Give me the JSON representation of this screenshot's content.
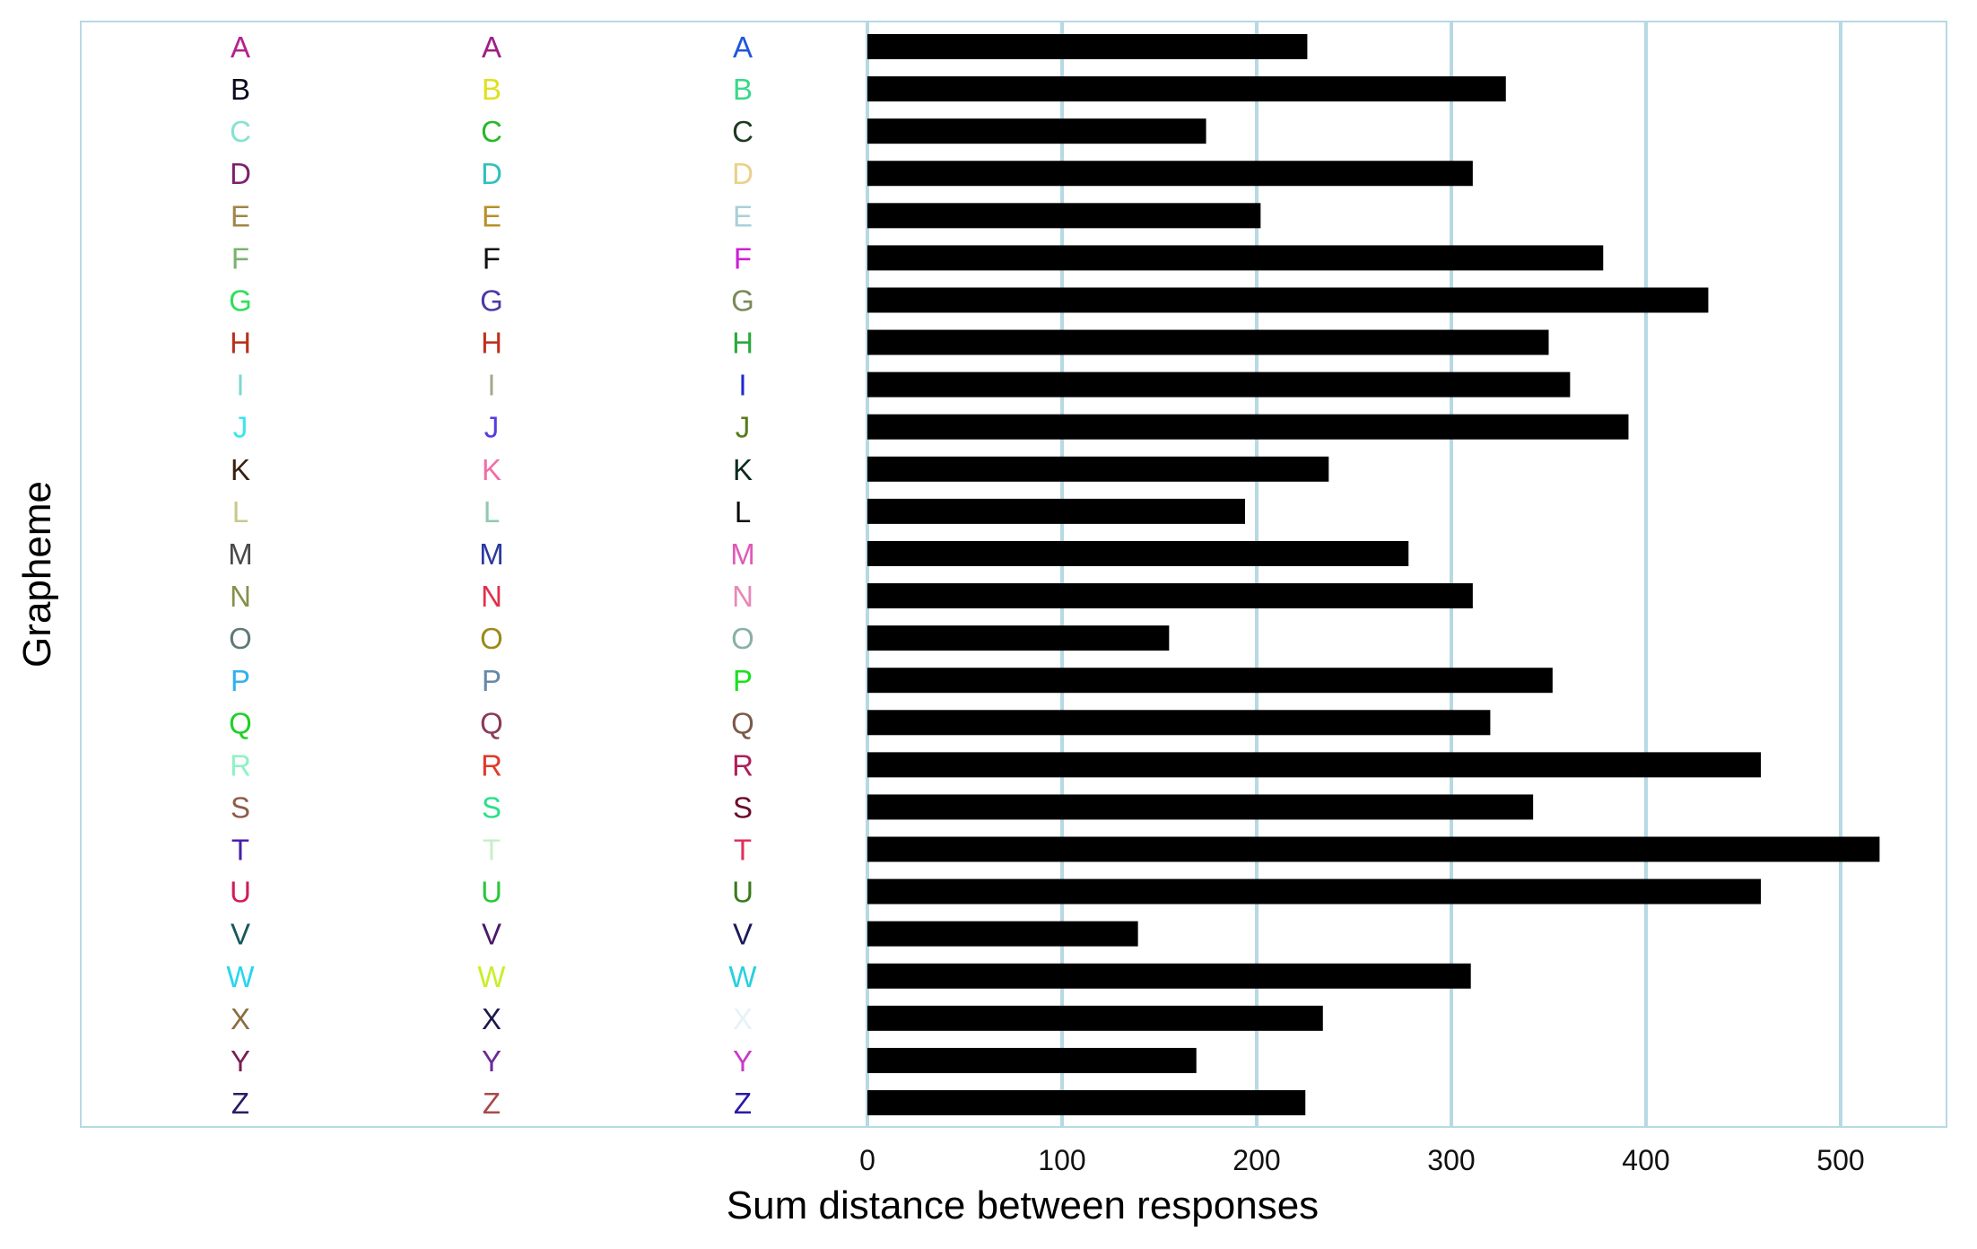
{
  "chart_data": {
    "type": "bar",
    "orientation": "horizontal",
    "xlabel": "Sum distance between responses",
    "ylabel": "Grapheme",
    "xlim": [
      0,
      560
    ],
    "x_ticks": [
      0,
      100,
      200,
      300,
      400,
      500
    ],
    "grid": "vertical major gridlines",
    "categories": [
      "A",
      "B",
      "C",
      "D",
      "E",
      "F",
      "G",
      "H",
      "I",
      "J",
      "K",
      "L",
      "M",
      "N",
      "O",
      "P",
      "Q",
      "R",
      "S",
      "T",
      "U",
      "V",
      "W",
      "X",
      "Y",
      "Z"
    ],
    "values": [
      226,
      328,
      174,
      311,
      202,
      378,
      432,
      350,
      361,
      391,
      237,
      194,
      278,
      311,
      155,
      352,
      320,
      459,
      342,
      520,
      459,
      139,
      310,
      234,
      169,
      225
    ],
    "bar_color": "#000000",
    "grid_color": "#b7d9e3",
    "panel_border_color": "#b7d9e3",
    "response_columns": [
      {
        "colors": [
          "#b5208f",
          "#0a0a1e",
          "#86e3cf",
          "#7e1e6d",
          "#a08546",
          "#79b36e",
          "#2ee05a",
          "#b8311f",
          "#7ed9cf",
          "#3ce4ef",
          "#3a1f0e",
          "#c7c98f",
          "#4a4a4a",
          "#85914b",
          "#5e7a7a",
          "#2fb0ef",
          "#1fd025",
          "#8ef2c5",
          "#8e5c48",
          "#4a20a8",
          "#d41a5a",
          "#14595b",
          "#28d6ef",
          "#8a6d3e",
          "#7a1e55",
          "#2a1c66"
        ]
      },
      {
        "colors": [
          "#a01e84",
          "#e0e01e",
          "#28b828",
          "#30bfbf",
          "#b89028",
          "#111111",
          "#4a3aa8",
          "#c0301e",
          "#a8a890",
          "#5a3ae0",
          "#ef6fa8",
          "#8ec9b0",
          "#2a3aa0",
          "#e0304a",
          "#9a8a1a",
          "#6688a8",
          "#8a3a5a",
          "#e03a2a",
          "#2ae08a",
          "#c9efc9",
          "#28c83a",
          "#4a1a6a",
          "#c8ef28",
          "#1a1a4a",
          "#6a2a9a",
          "#a84a4a"
        ]
      },
      {
        "colors": [
          "#2255dd",
          "#3ad88a",
          "#1e3a1e",
          "#ead08a",
          "#a8d0d8",
          "#cc1ed8",
          "#7a8a5a",
          "#2aa83a",
          "#1e2ad0",
          "#5a7a1e",
          "#0a2a1e",
          "#0a0a0a",
          "#e05ab8",
          "#e888b8",
          "#8ab0a8",
          "#1ae01e",
          "#7a5a4a",
          "#b01e5a",
          "#6a0a2a",
          "#e0305a",
          "#3a7a1e",
          "#1a1a5a",
          "#28d0e0",
          "#e6f2f8",
          "#c83ac8",
          "#2a1aa8"
        ]
      }
    ]
  }
}
